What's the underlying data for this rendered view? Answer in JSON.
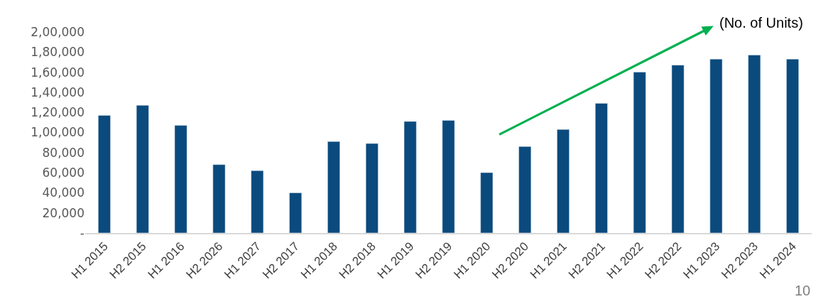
{
  "chart_data": {
    "type": "bar",
    "subtitle": "(No. of Units)",
    "categories": [
      "H1 2015",
      "H2 2015",
      "H1 2016",
      "H2 2026",
      "H1 2027",
      "H2 2017",
      "H1 2018",
      "H2 2018",
      "H1 2019",
      "H2 2019",
      "H1 2020",
      "H2 2020",
      "H1 2021",
      "H2 2021",
      "H1 2022",
      "H2 2022",
      "H1 2023",
      "H2 2023",
      "H1 2024"
    ],
    "series": [
      {
        "color": "#0b4a7d",
        "values": [
          117000,
          127000,
          107000,
          68000,
          62000,
          40000,
          91000,
          89000,
          111000,
          112000,
          60000,
          86000,
          103000,
          129000,
          160000,
          167000,
          173000,
          177000,
          173000
        ]
      }
    ],
    "ylim": [
      0,
      200000
    ],
    "yticks": [
      {
        "value": 0,
        "label": "-"
      },
      {
        "value": 20000,
        "label": "20,000"
      },
      {
        "value": 40000,
        "label": "40,000"
      },
      {
        "value": 60000,
        "label": "60,000"
      },
      {
        "value": 80000,
        "label": "80,000"
      },
      {
        "value": 100000,
        "label": "1,00,000"
      },
      {
        "value": 120000,
        "label": "1,20,000"
      },
      {
        "value": 140000,
        "label": "1,40,000"
      },
      {
        "value": 160000,
        "label": "1,60,000"
      },
      {
        "value": 180000,
        "label": "1,80,000"
      },
      {
        "value": 200000,
        "label": "2,00,000"
      }
    ],
    "annotations": [
      "10"
    ]
  }
}
